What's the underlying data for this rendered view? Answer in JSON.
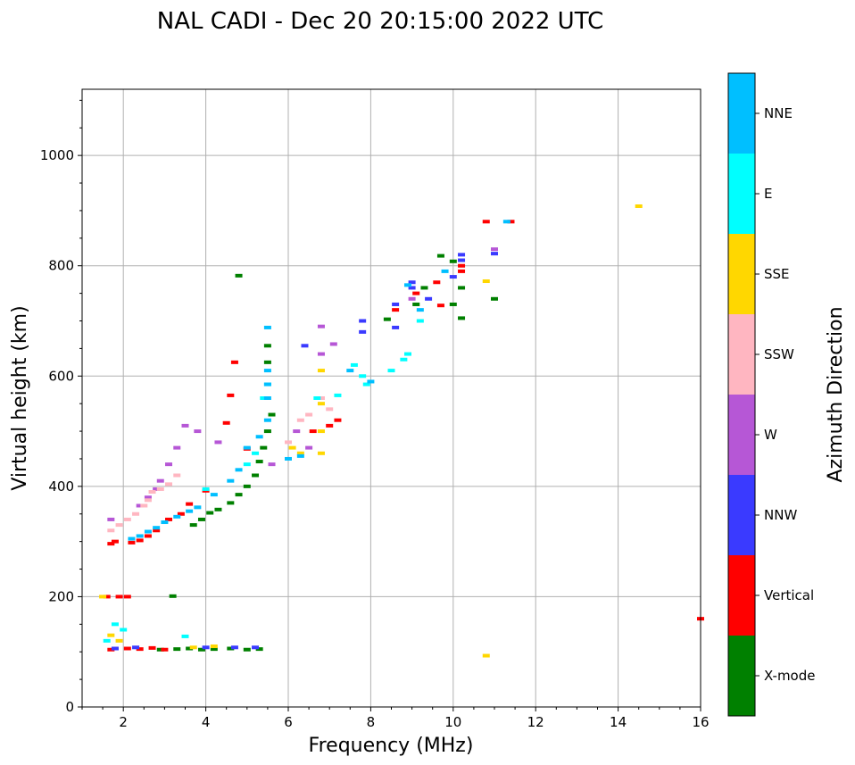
{
  "chart_data": {
    "type": "scatter",
    "title": "NAL CADI - Dec 20 20:15:00 2022 UTC",
    "xlabel": "Frequency (MHz)",
    "ylabel": "Virtual height (km)",
    "xlim": [
      1,
      16
    ],
    "ylim": [
      0,
      1120
    ],
    "xticks": [
      2,
      4,
      6,
      8,
      10,
      12,
      14,
      16
    ],
    "yticks": [
      0,
      200,
      400,
      600,
      800,
      1000
    ],
    "grid": true,
    "colorbar": {
      "label": "Azimuth Direction",
      "categories": [
        {
          "name": "X-mode",
          "color": "#008000"
        },
        {
          "name": "Vertical",
          "color": "#ff0000"
        },
        {
          "name": "NNW",
          "color": "#3a3aff"
        },
        {
          "name": "W",
          "color": "#b657d6"
        },
        {
          "name": "SSW",
          "color": "#ffb6c1"
        },
        {
          "name": "SSE",
          "color": "#ffd700"
        },
        {
          "name": "E",
          "color": "#00ffff"
        },
        {
          "name": "NNE",
          "color": "#00bfff"
        }
      ]
    },
    "series": [
      {
        "name": "X-mode",
        "points": [
          [
            2.9,
            104
          ],
          [
            3.3,
            105
          ],
          [
            3.6,
            106
          ],
          [
            3.9,
            104
          ],
          [
            4.2,
            105
          ],
          [
            4.6,
            106
          ],
          [
            5.0,
            104
          ],
          [
            5.3,
            105
          ],
          [
            3.2,
            201
          ],
          [
            3.7,
            330
          ],
          [
            3.9,
            340
          ],
          [
            4.1,
            352
          ],
          [
            4.3,
            358
          ],
          [
            4.6,
            370
          ],
          [
            4.8,
            385
          ],
          [
            5.0,
            400
          ],
          [
            5.2,
            420
          ],
          [
            5.3,
            445
          ],
          [
            5.4,
            470
          ],
          [
            5.5,
            500
          ],
          [
            5.6,
            530
          ],
          [
            5.5,
            655
          ],
          [
            5.5,
            625
          ],
          [
            4.8,
            782
          ],
          [
            8.4,
            703
          ],
          [
            9.1,
            730
          ],
          [
            9.3,
            760
          ],
          [
            9.7,
            818
          ],
          [
            10.0,
            808
          ],
          [
            10.0,
            730
          ],
          [
            10.2,
            705
          ],
          [
            10.2,
            760
          ],
          [
            11.0,
            740
          ]
        ]
      },
      {
        "name": "Vertical",
        "points": [
          [
            1.7,
            104
          ],
          [
            2.1,
            106
          ],
          [
            2.4,
            105
          ],
          [
            2.7,
            107
          ],
          [
            3.0,
            104
          ],
          [
            1.6,
            200
          ],
          [
            1.9,
            200
          ],
          [
            2.1,
            200
          ],
          [
            1.7,
            296
          ],
          [
            1.8,
            300
          ],
          [
            2.2,
            298
          ],
          [
            2.4,
            302
          ],
          [
            2.6,
            310
          ],
          [
            2.8,
            320
          ],
          [
            3.1,
            340
          ],
          [
            3.4,
            350
          ],
          [
            3.6,
            368
          ],
          [
            4.0,
            392
          ],
          [
            4.5,
            515
          ],
          [
            4.6,
            565
          ],
          [
            4.7,
            625
          ],
          [
            5.0,
            468
          ],
          [
            6.6,
            500
          ],
          [
            7.0,
            510
          ],
          [
            7.2,
            520
          ],
          [
            8.6,
            720
          ],
          [
            9.1,
            750
          ],
          [
            9.6,
            770
          ],
          [
            9.7,
            728
          ],
          [
            10.2,
            800
          ],
          [
            10.2,
            790
          ],
          [
            10.8,
            880
          ],
          [
            11.4,
            880
          ],
          [
            16.0,
            160
          ]
        ]
      },
      {
        "name": "NNW",
        "points": [
          [
            1.8,
            106
          ],
          [
            2.3,
            108
          ],
          [
            4.0,
            108
          ],
          [
            4.7,
            108
          ],
          [
            5.2,
            108
          ],
          [
            6.4,
            655
          ],
          [
            7.8,
            700
          ],
          [
            7.8,
            680
          ],
          [
            8.6,
            688
          ],
          [
            8.6,
            730
          ],
          [
            9.0,
            760
          ],
          [
            9.0,
            770
          ],
          [
            9.4,
            740
          ],
          [
            10.0,
            780
          ],
          [
            10.2,
            820
          ],
          [
            10.2,
            810
          ],
          [
            11.0,
            822
          ]
        ]
      },
      {
        "name": "W",
        "points": [
          [
            1.7,
            340
          ],
          [
            2.4,
            365
          ],
          [
            2.6,
            380
          ],
          [
            2.8,
            395
          ],
          [
            2.9,
            410
          ],
          [
            3.1,
            440
          ],
          [
            3.3,
            470
          ],
          [
            3.5,
            510
          ],
          [
            3.8,
            500
          ],
          [
            4.3,
            480
          ],
          [
            5.6,
            440
          ],
          [
            6.2,
            500
          ],
          [
            6.5,
            470
          ],
          [
            6.8,
            690
          ],
          [
            6.8,
            640
          ],
          [
            7.1,
            658
          ],
          [
            9.0,
            740
          ],
          [
            11.0,
            830
          ]
        ]
      },
      {
        "name": "SSW",
        "points": [
          [
            1.7,
            320
          ],
          [
            1.9,
            330
          ],
          [
            2.1,
            340
          ],
          [
            2.3,
            350
          ],
          [
            2.5,
            365
          ],
          [
            2.6,
            375
          ],
          [
            2.7,
            390
          ],
          [
            2.9,
            395
          ],
          [
            3.1,
            404
          ],
          [
            3.3,
            420
          ],
          [
            6.0,
            480
          ],
          [
            6.3,
            520
          ],
          [
            6.5,
            530
          ],
          [
            6.8,
            560
          ],
          [
            7.0,
            540
          ]
        ]
      },
      {
        "name": "SSE",
        "points": [
          [
            1.5,
            200
          ],
          [
            1.7,
            130
          ],
          [
            1.9,
            120
          ],
          [
            3.7,
            108
          ],
          [
            4.2,
            110
          ],
          [
            6.1,
            470
          ],
          [
            6.3,
            460
          ],
          [
            6.8,
            460
          ],
          [
            6.8,
            500
          ],
          [
            6.8,
            550
          ],
          [
            6.8,
            610
          ],
          [
            10.8,
            772
          ],
          [
            10.8,
            93
          ],
          [
            14.5,
            908
          ]
        ]
      },
      {
        "name": "E",
        "points": [
          [
            1.6,
            120
          ],
          [
            1.8,
            150
          ],
          [
            2.0,
            140
          ],
          [
            3.5,
            128
          ],
          [
            4.0,
            395
          ],
          [
            5.0,
            440
          ],
          [
            5.2,
            460
          ],
          [
            5.4,
            560
          ],
          [
            5.5,
            585
          ],
          [
            6.7,
            560
          ],
          [
            7.2,
            565
          ],
          [
            7.6,
            620
          ],
          [
            7.8,
            600
          ],
          [
            7.9,
            585
          ],
          [
            8.5,
            610
          ],
          [
            8.8,
            630
          ],
          [
            8.9,
            640
          ],
          [
            9.2,
            700
          ]
        ]
      },
      {
        "name": "NNE",
        "points": [
          [
            2.2,
            305
          ],
          [
            2.4,
            310
          ],
          [
            2.6,
            318
          ],
          [
            2.8,
            325
          ],
          [
            3.0,
            335
          ],
          [
            3.3,
            345
          ],
          [
            3.6,
            355
          ],
          [
            3.8,
            362
          ],
          [
            4.2,
            385
          ],
          [
            4.6,
            410
          ],
          [
            4.8,
            430
          ],
          [
            5.0,
            470
          ],
          [
            5.3,
            490
          ],
          [
            5.5,
            520
          ],
          [
            5.5,
            560
          ],
          [
            5.5,
            585
          ],
          [
            5.5,
            688
          ],
          [
            5.5,
            610
          ],
          [
            6.0,
            450
          ],
          [
            6.3,
            455
          ],
          [
            7.5,
            610
          ],
          [
            8.0,
            590
          ],
          [
            8.9,
            765
          ],
          [
            9.2,
            720
          ],
          [
            9.8,
            790
          ],
          [
            11.3,
            880
          ]
        ]
      }
    ]
  }
}
